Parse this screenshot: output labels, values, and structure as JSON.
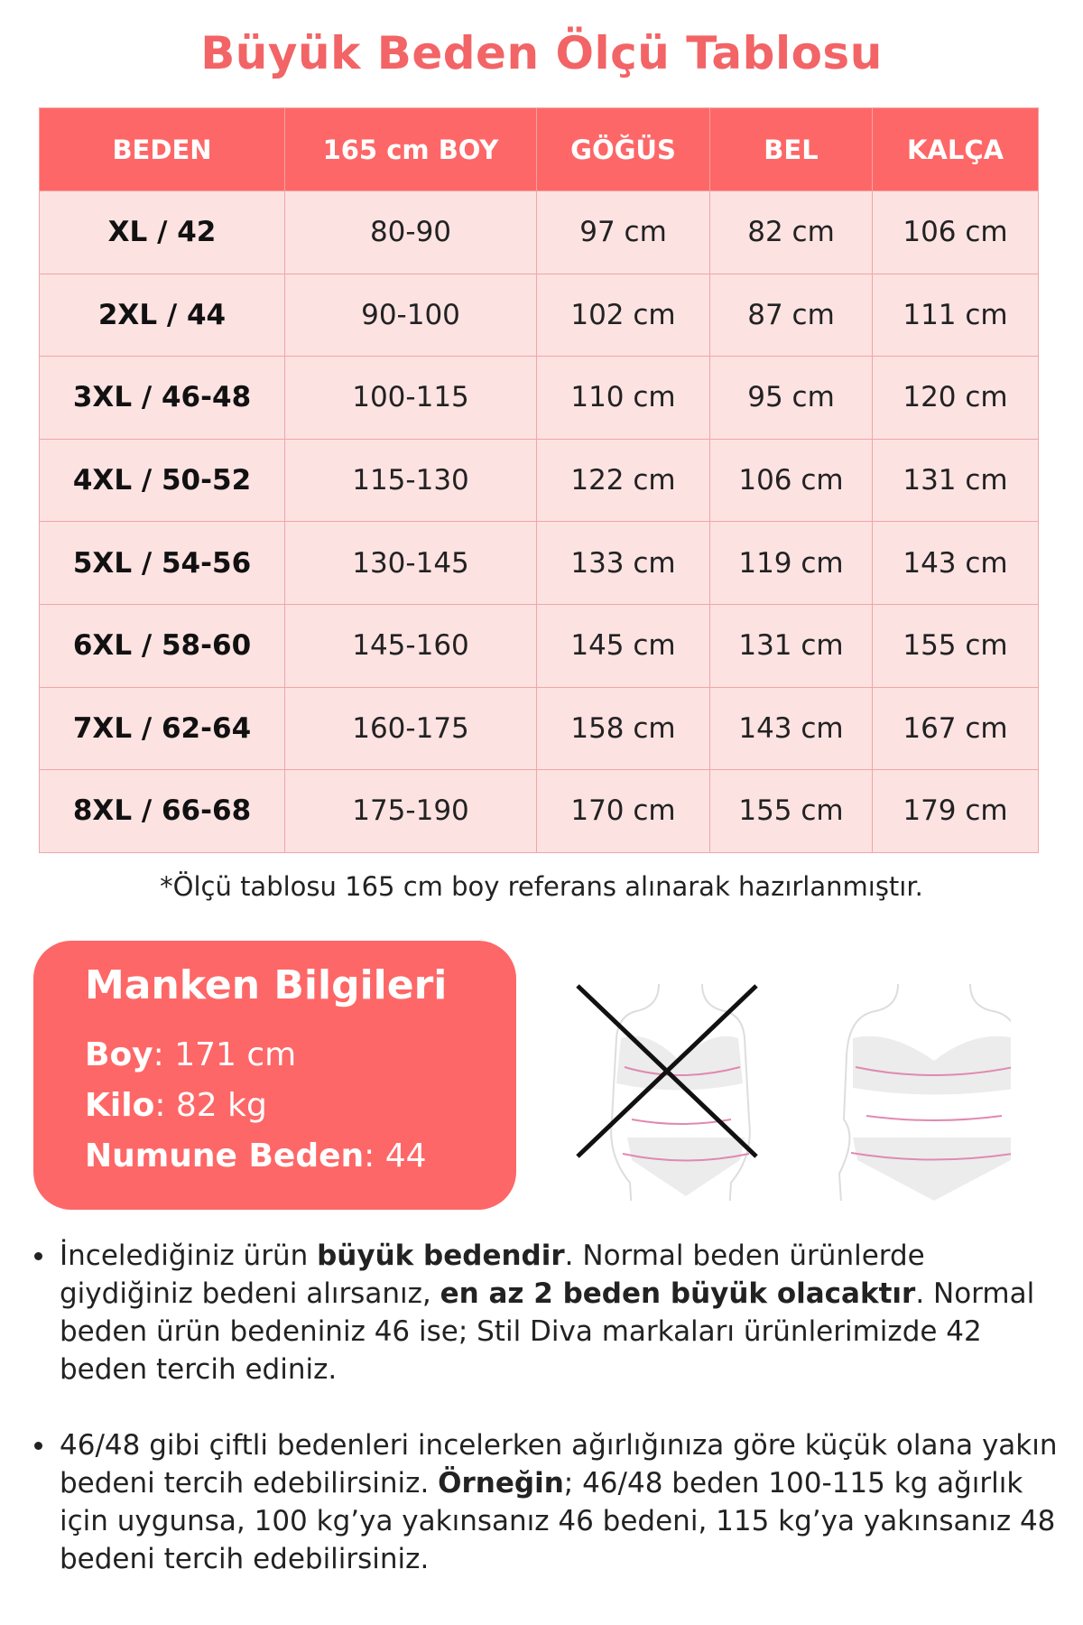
{
  "title": "Büyük Beden Ölçü Tablosu",
  "table": {
    "headers": [
      "BEDEN",
      "165 cm BOY",
      "GÖĞÜS",
      "BEL",
      "KALÇA"
    ],
    "rows": [
      [
        "XL / 42",
        "80-90",
        "97 cm",
        "82 cm",
        "106 cm"
      ],
      [
        "2XL / 44",
        "90-100",
        "102 cm",
        "87 cm",
        "111 cm"
      ],
      [
        "3XL / 46-48",
        "100-115",
        "110 cm",
        "95 cm",
        "120 cm"
      ],
      [
        "4XL / 50-52",
        "115-130",
        "122 cm",
        "106 cm",
        "131 cm"
      ],
      [
        "5XL / 54-56",
        "130-145",
        "133 cm",
        "119 cm",
        "143 cm"
      ],
      [
        "6XL / 58-60",
        "145-160",
        "145 cm",
        "131 cm",
        "155 cm"
      ],
      [
        "7XL / 62-64",
        "160-175",
        "158 cm",
        "143 cm",
        "167 cm"
      ],
      [
        "8XL / 66-68",
        "175-190",
        "170 cm",
        "155 cm",
        "179 cm"
      ]
    ]
  },
  "note": "*Ölçü tablosu 165 cm boy referans alınarak hazırlanmıştır.",
  "manken": {
    "title": "Manken Bilgileri",
    "boy_label": "Boy",
    "boy": ": 171 cm",
    "kilo_label": "Kilo",
    "kilo": ": 82 kg",
    "beden_label": "Numune Beden",
    "beden": ": 44"
  },
  "colors": {
    "accent": "#fe6767",
    "row_bg": "#fde2e2",
    "title": "#f26466"
  },
  "bullets": [
    {
      "t1": "İncelediğiniz ürün ",
      "b1": "büyük bedendir",
      "t2": ". Normal beden ürünlerde giydiğiniz bedeni alırsanız, ",
      "b2": "en az 2 beden büyük olacaktır",
      "t3": ". Normal beden ürün bedeniniz 46 ise; Stil Diva markaları ürünlerimizde 42 beden tercih ediniz."
    },
    {
      "t1": "46/48 gibi çiftli bedenleri incelerken ağırlığınıza göre küçük olana yakın bedeni tercih edebilirsiniz. ",
      "b1": "Örneğin",
      "t2": "; 46/48 beden 100-115 kg ağırlık için uygunsa, 100 kg’ya yakınsanız 46 bedeni, 115 kg’ya yakınsanız 48 bedeni tercih edebilirsiniz."
    }
  ]
}
